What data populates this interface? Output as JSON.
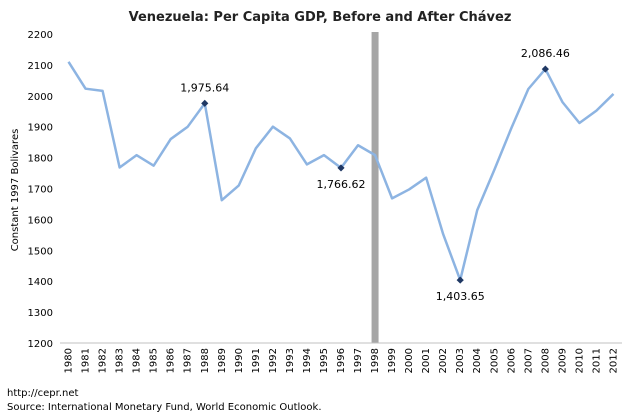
{
  "chart_data": {
    "type": "line",
    "title": "Venezuela: Per Capita GDP, Before and After Chávez",
    "xlabel": "",
    "ylabel": "Constant 1997 Bolivares",
    "ylim": [
      1200,
      2200
    ],
    "yticks": [
      1200,
      1300,
      1400,
      1500,
      1600,
      1700,
      1800,
      1900,
      2000,
      2100,
      2200
    ],
    "grid": false,
    "line_color": "#8db4e2",
    "marker_color": "#1f3864",
    "divider_color": "#a6a6a6",
    "divider_year": "1998",
    "categories": [
      "1980",
      "1981",
      "1982",
      "1983",
      "1984",
      "1985",
      "1986",
      "1987",
      "1988",
      "1989",
      "1990",
      "1991",
      "1992",
      "1993",
      "1994",
      "1995",
      "1996",
      "1997",
      "1998",
      "1999",
      "2000",
      "2001",
      "2002",
      "2003",
      "2004",
      "2005",
      "2006",
      "2007",
      "2008",
      "2009",
      "2010",
      "2011",
      "2012"
    ],
    "series": [
      {
        "name": "Per Capita GDP",
        "values": [
          2110,
          2023,
          2016,
          1768,
          1808,
          1774,
          1860,
          1900,
          1975.64,
          1662,
          1710,
          1830,
          1900,
          1862,
          1778,
          1808,
          1766.62,
          1840,
          1808,
          1668,
          1697,
          1735,
          1552,
          1403.65,
          1630,
          1760,
          1895,
          2022,
          2086.46,
          1980,
          1912,
          1952,
          2006
        ]
      }
    ],
    "annotations": [
      {
        "year": "1988",
        "label": "1,975.64",
        "value": 1975.64,
        "position": "above"
      },
      {
        "year": "1996",
        "label": "1,766.62",
        "value": 1766.62,
        "position": "below"
      },
      {
        "year": "2003",
        "label": "1,403.65",
        "value": 1403.65,
        "position": "below"
      },
      {
        "year": "2008",
        "label": "2,086.46",
        "value": 2086.46,
        "position": "above"
      }
    ]
  },
  "footer": {
    "url": "http://cepr.net",
    "source": "Source: International Monetary Fund, World Economic Outlook."
  }
}
